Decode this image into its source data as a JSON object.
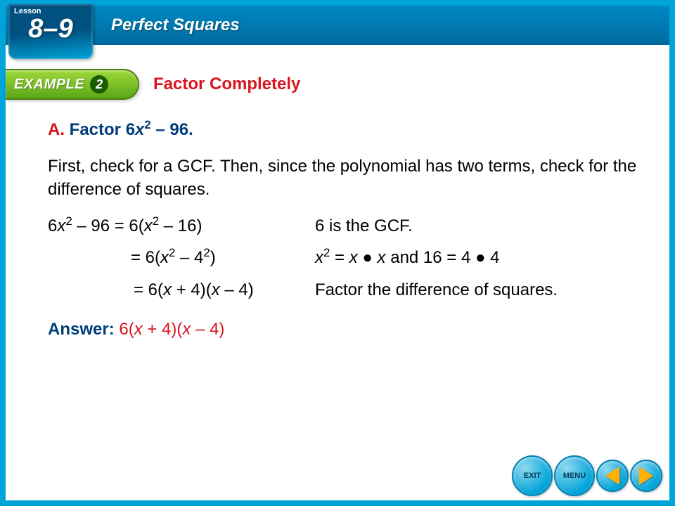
{
  "header": {
    "lesson_label": "Lesson",
    "lesson_number": "8–9",
    "chapter_title": "Perfect Squares"
  },
  "example": {
    "badge_text": "EXAMPLE",
    "number": "2",
    "section_title": "Factor Completely"
  },
  "content": {
    "part_letter": "A.",
    "prompt_prefix": "Factor 6",
    "prompt_var": "x",
    "prompt_exp": "2",
    "prompt_suffix": " – 96.",
    "intro": "First, check for a GCF. Then, since the polynomial has two terms, check for the difference of squares.",
    "steps": [
      {
        "left_html": "6<span class='ital'>x</span><sup>2</sup> – 96 = 6(<span class='ital'>x</span><sup>2</sup> – 16)",
        "right_html": "6 is the GCF.",
        "indent": 0
      },
      {
        "left_html": "= 6(<span class='ital'>x</span><sup>2</sup> – 4<sup>2</sup>)",
        "right_html": "<span class='ital'>x</span><sup>2</sup> = <span class='ital'>x</span> ● <span class='ital'>x</span> and 16 = 4 ● 4",
        "indent": 118
      },
      {
        "left_html": "= 6(<span class='ital'>x</span> + 4)(<span class='ital'>x</span> – 4)",
        "right_html": "Factor the difference of squares.",
        "indent": 122
      }
    ],
    "answer_label": "Answer:",
    "answer_html": "  6(<span class='ital'>x</span> + 4)(<span class='ital'>x</span> – 4)"
  },
  "nav": {
    "exit": "EXIT",
    "menu": "MENU"
  },
  "colors": {
    "frame": "#00a4d8",
    "header_grad_top": "#0089c4",
    "header_grad_bottom": "#006a9e",
    "red": "#d8141e",
    "blue": "#003d7a",
    "green_badge": "#5aa818",
    "arrow": "#ffb000"
  }
}
